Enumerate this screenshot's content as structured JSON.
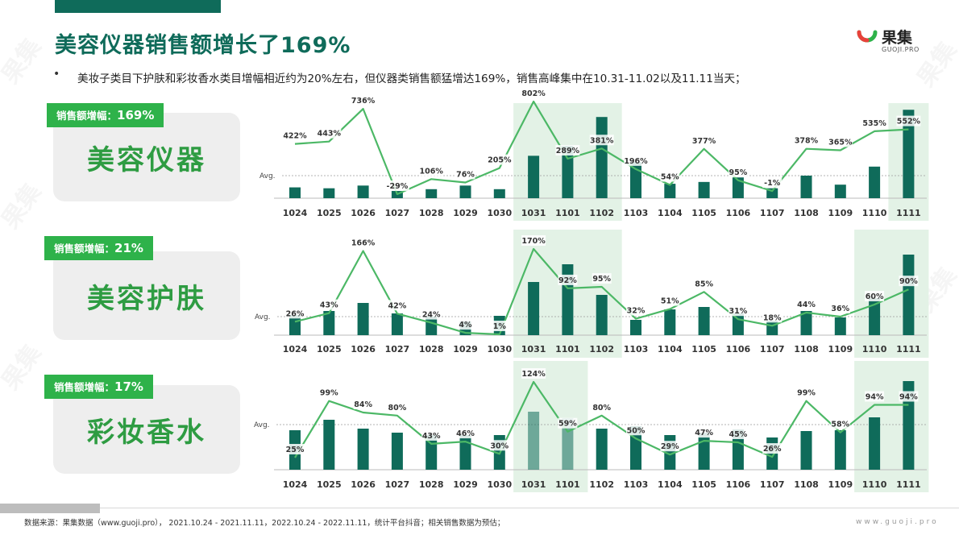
{
  "header": {
    "title": "美容仪器销售额增长了169%",
    "bullet": "美妆子类目下护肤和彩妆香水类目增幅相近约为20%左右，但仪器类销售额猛增达169%，销售高峰集中在10.31-11.02以及11.11当天；"
  },
  "logo": {
    "name": "果集",
    "sub": "GUOJI.PRO"
  },
  "colors": {
    "bar": "#0f6b5a",
    "line": "#4cb866",
    "highlight": "#e3f2e6",
    "badge": "#2eb24a"
  },
  "watermark": "果集",
  "panels": [
    {
      "name": "美容仪器",
      "badge_label": "销售额增幅：",
      "badge_value": "169%"
    },
    {
      "name": "美容护肤",
      "badge_label": "销售额增幅：",
      "badge_value": "21%"
    },
    {
      "name": "彩妆香水",
      "badge_label": "销售额增幅：",
      "badge_value": "17%"
    }
  ],
  "chart_data": [
    {
      "type": "bar+line",
      "title": "美容仪器",
      "avg_label": "Avg.",
      "categories": [
        "1024",
        "1025",
        "1026",
        "1027",
        "1028",
        "1029",
        "1030",
        "1031",
        "1101",
        "1102",
        "1103",
        "1104",
        "1105",
        "1106",
        "1107",
        "1108",
        "1109",
        "1110",
        "1111"
      ],
      "bar_values": [
        12,
        11,
        14,
        8,
        10,
        14,
        10,
        47,
        58,
        90,
        40,
        16,
        18,
        23,
        11,
        25,
        15,
        35,
        98
      ],
      "line_values": [
        422,
        443,
        736,
        -29,
        106,
        76,
        205,
        802,
        289,
        381,
        196,
        54,
        377,
        95,
        -1,
        378,
        365,
        535,
        552
      ],
      "line_labels": [
        "422%",
        "443%",
        "736%",
        "-29%",
        "106%",
        "76%",
        "205%",
        "802%",
        "289%",
        "381%",
        "196%",
        "54%",
        "377%",
        "95%",
        "-1%",
        "378%",
        "365%",
        "535%",
        "552%"
      ],
      "highlight": [
        [
          "1031",
          "1102"
        ],
        [
          "1111",
          "1111"
        ]
      ]
    },
    {
      "type": "bar+line",
      "title": "美容护肤",
      "avg_label": "Avg.",
      "categories": [
        "1024",
        "1025",
        "1026",
        "1027",
        "1028",
        "1029",
        "1030",
        "1031",
        "1101",
        "1102",
        "1103",
        "1104",
        "1105",
        "1106",
        "1107",
        "1108",
        "1109",
        "1110",
        "1111"
      ],
      "bar_values": [
        25,
        30,
        40,
        27,
        23,
        17,
        24,
        66,
        88,
        50,
        19,
        32,
        35,
        27,
        18,
        30,
        22,
        46,
        100
      ],
      "line_values": [
        26,
        43,
        166,
        42,
        24,
        4,
        1,
        170,
        92,
        95,
        32,
        51,
        85,
        31,
        18,
        44,
        36,
        60,
        90
      ],
      "line_labels": [
        "26%",
        "43%",
        "166%",
        "42%",
        "24%",
        "4%",
        "1%",
        "170%",
        "92%",
        "95%",
        "32%",
        "51%",
        "85%",
        "31%",
        "18%",
        "44%",
        "36%",
        "60%",
        "90%"
      ],
      "highlight": [
        [
          "1031",
          "1102"
        ],
        [
          "1110",
          "1111"
        ]
      ]
    },
    {
      "type": "bar+line",
      "title": "彩妆香水",
      "avg_label": "Avg.",
      "categories": [
        "1024",
        "1025",
        "1026",
        "1027",
        "1028",
        "1029",
        "1030",
        "1031",
        "1101",
        "1102",
        "1103",
        "1104",
        "1105",
        "1106",
        "1107",
        "1108",
        "1109",
        "1110",
        "1111"
      ],
      "bar_values": [
        49,
        62,
        51,
        46,
        43,
        43,
        43,
        72,
        64,
        51,
        54,
        43,
        46,
        50,
        40,
        48,
        49,
        65,
        110
      ],
      "line_values": [
        25,
        99,
        84,
        80,
        43,
        46,
        30,
        124,
        59,
        80,
        50,
        29,
        47,
        45,
        26,
        99,
        58,
        94,
        94
      ],
      "line_labels": [
        "25%",
        "99%",
        "84%",
        "80%",
        "43%",
        "46%",
        "30%",
        "124%",
        "59%",
        "80%",
        "50%",
        "29%",
        "47%",
        "45%",
        "26%",
        "99%",
        "58%",
        "94%",
        "94%"
      ],
      "highlight": [
        [
          "1031",
          "1101"
        ],
        [
          "1110",
          "1111"
        ]
      ]
    }
  ],
  "footer": {
    "source": "数据来源：果集数据（www.guoji.pro），  2021.10.24 - 2021.11.11，2022.10.24 - 2022.11.11，统计平台抖音；相关销售数据为预估；",
    "website": "www.guoji.pro"
  }
}
